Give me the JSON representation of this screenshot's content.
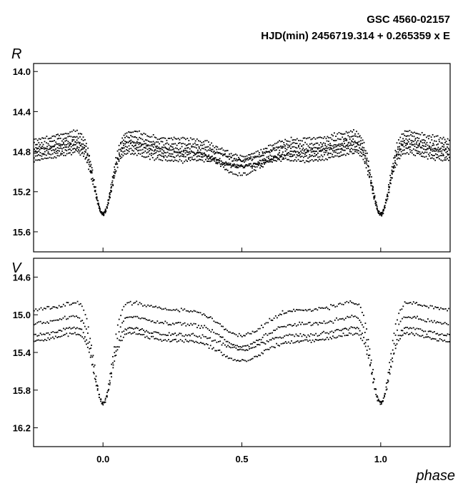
{
  "chart_data": [
    {
      "type": "scatter",
      "panel": "R",
      "title": "GSC 4560-02157",
      "subtitle": "HJD(min) 2456719.314 + 0.265359 x E",
      "ylabel": "R",
      "xlabel": "phase",
      "xlim": [
        -0.25,
        1.25
      ],
      "ylim": [
        15.8,
        13.92
      ],
      "y_inverted": true,
      "xticks": [
        0.0,
        0.5,
        1.0
      ],
      "xtick_labels": [],
      "yticks": [
        14.0,
        14.4,
        14.8,
        15.2,
        15.6
      ],
      "ytick_labels": [
        "14.0",
        "14.4",
        "14.8",
        "15.2",
        "15.6"
      ],
      "grid": false,
      "light_curve": {
        "phase_min": 0.0,
        "min_mag": 15.48,
        "primary_min_width": 0.05,
        "secondary_min_phase": 0.5,
        "secondary_min_mag_low": 15.2,
        "max_phase": [
          0.27,
          0.73
        ],
        "max_mag_range": [
          14.5,
          15.0
        ],
        "nights": [
          {
            "offset": -0.28,
            "spot": 0.05
          },
          {
            "offset": -0.18,
            "spot": 0.08
          },
          {
            "offset": -0.1,
            "spot": 0.02
          },
          {
            "offset": 0.0,
            "spot": 0.1
          },
          {
            "offset": 0.07,
            "spot": 0.05
          },
          {
            "offset": 0.15,
            "spot": 0.03
          },
          {
            "offset": -0.05,
            "spot": 0.25
          }
        ]
      }
    },
    {
      "type": "scatter",
      "panel": "V",
      "ylabel": "V",
      "xlabel": "phase",
      "xlim": [
        -0.25,
        1.25
      ],
      "ylim": [
        16.4,
        14.4
      ],
      "y_inverted": true,
      "xticks": [
        0.0,
        0.5,
        1.0
      ],
      "xtick_labels": [
        "0.0",
        "0.5",
        "1.0"
      ],
      "yticks": [
        14.6,
        15.0,
        15.4,
        15.8,
        16.2
      ],
      "ytick_labels": [
        "14.6",
        "15.0",
        "15.4",
        "15.8",
        "16.2"
      ],
      "grid": false,
      "light_curve": {
        "phase_min": 0.0,
        "min_mag": 16.0,
        "primary_min_width": 0.05,
        "secondary_min_phase": 0.5,
        "secondary_min_mag_low": 15.7,
        "max_phase": [
          0.27,
          0.73
        ],
        "max_mag_range": [
          14.85,
          15.45
        ],
        "nights": [
          {
            "offset": -0.45,
            "spot": 0.05
          },
          {
            "offset": -0.2,
            "spot": 0.1
          },
          {
            "offset": 0.0,
            "spot": 0.05
          },
          {
            "offset": 0.1,
            "spot": 0.2
          }
        ]
      }
    }
  ]
}
